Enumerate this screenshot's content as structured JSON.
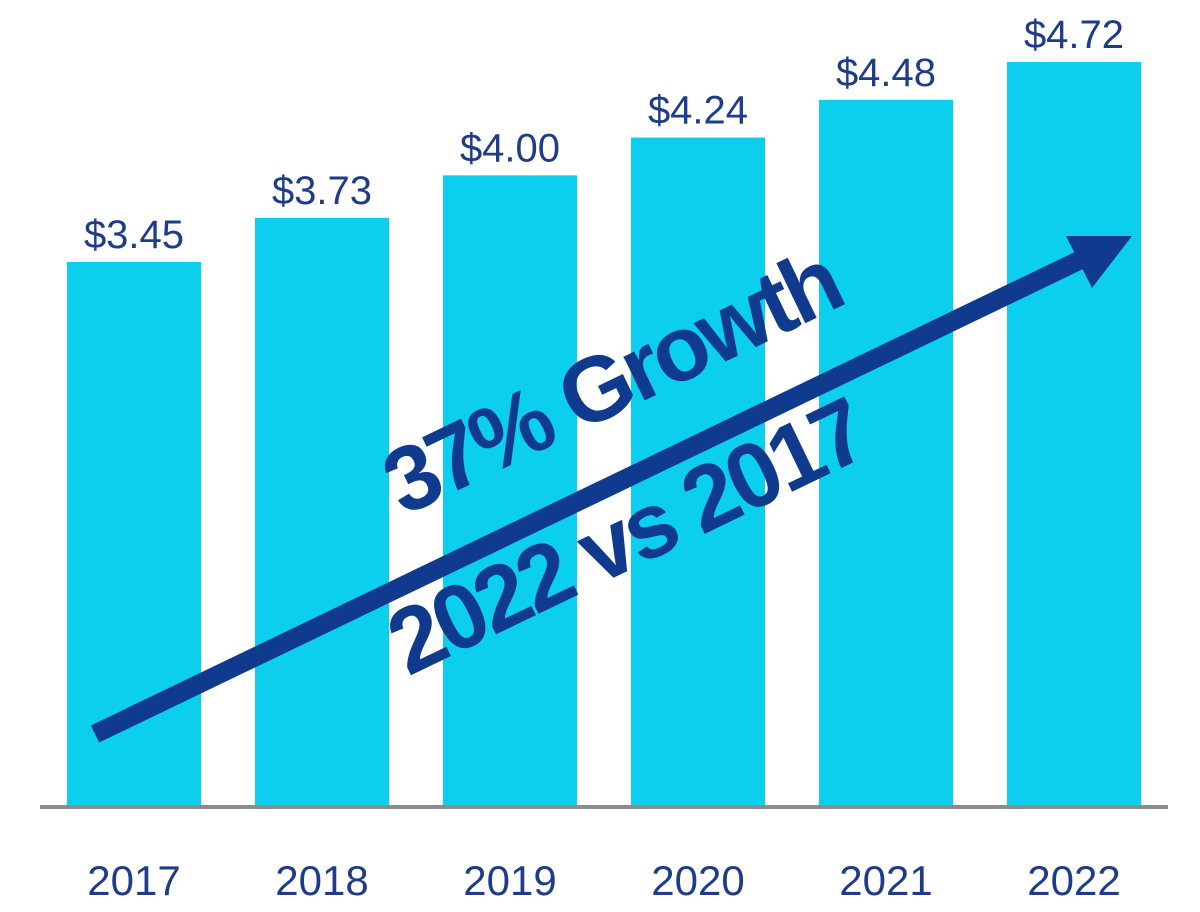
{
  "chart_data": {
    "type": "bar",
    "title": "",
    "xlabel": "",
    "ylabel": "",
    "categories": [
      "2017",
      "2018",
      "2019",
      "2020",
      "2021",
      "2022"
    ],
    "values": [
      3.45,
      3.73,
      4.0,
      4.24,
      4.48,
      4.72
    ],
    "value_labels": [
      "$3.45",
      "$3.73",
      "$4.00",
      "$4.24",
      "$4.48",
      "$4.72"
    ],
    "ylim": [
      0,
      4.72
    ],
    "grid": false,
    "legend": "none",
    "annotations": {
      "growth_line1": "37% Growth",
      "growth_line2": "2022 vs 2017"
    }
  },
  "colors": {
    "bar": "#0bcfec",
    "text": "#1f3c88",
    "arrow": "#0f3a8e",
    "axis": "#8c8c8c"
  }
}
